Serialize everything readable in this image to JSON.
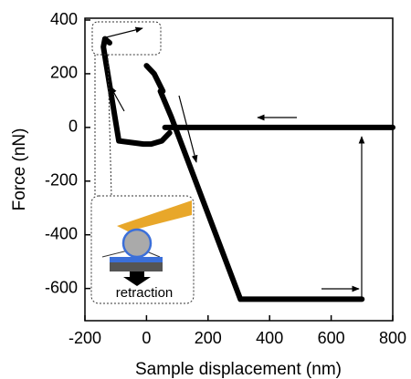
{
  "chart_data": {
    "type": "line",
    "xlabel": "Sample displacement (nm)",
    "ylabel": "Force (nN)",
    "annotation": "retraction",
    "x": [
      800,
      60,
      null,
      45,
      80,
      305,
      700,
      null,
      0,
      25,
      53,
      null,
      75,
      50,
      15,
      -10,
      -90,
      -140,
      -135,
      -120
    ],
    "series": [
      {
        "color": "#000000",
        "values": [
          0,
          0,
          null,
          135,
          40,
          -640,
          -640,
          null,
          230,
          200,
          135,
          null,
          -20,
          -50,
          -62,
          -62,
          -50,
          300,
          330,
          315
        ]
      }
    ],
    "xlim": [
      -200,
      800
    ],
    "ylim": [
      -720,
      400
    ],
    "xticks": [
      -200,
      0,
      200,
      400,
      600,
      800
    ],
    "yticks": [
      400,
      200,
      0,
      -200,
      -400,
      -600
    ]
  }
}
